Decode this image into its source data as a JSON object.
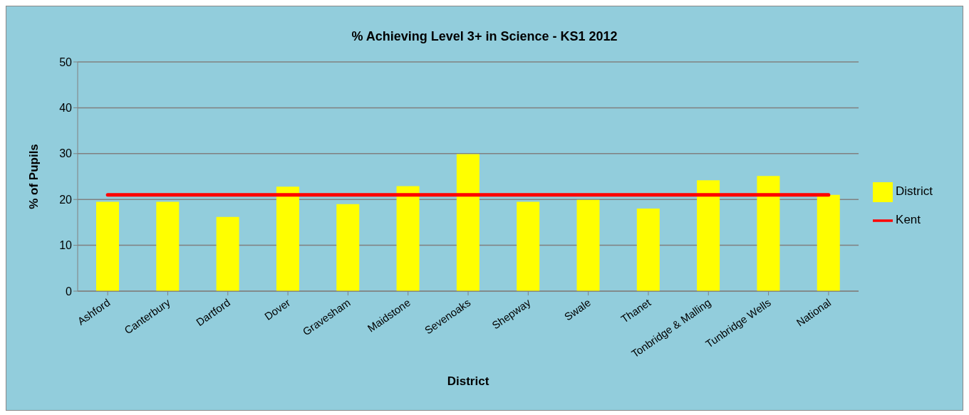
{
  "chart_data": {
    "type": "bar",
    "title": "% Achieving Level 3+ in Science - KS1 2012",
    "xlabel": "District",
    "ylabel": "% of Pupils",
    "categories": [
      "Ashford",
      "Canterbury",
      "Dartford",
      "Dover",
      "Gravesham",
      "Maidstone",
      "Sevenoaks",
      "Shepway",
      "Swale",
      "Thanet",
      "Tonbridge & Malling",
      "Tunbridge Wells",
      "National"
    ],
    "series": [
      {
        "name": "District",
        "color": "#ffff00",
        "values": [
          19.5,
          19.5,
          16.2,
          22.8,
          19.0,
          22.9,
          29.9,
          19.5,
          19.9,
          18.0,
          24.2,
          25.1,
          21.0
        ]
      },
      {
        "name": "Kent",
        "type": "line",
        "color": "#ff0000",
        "values": [
          21.0,
          21.0,
          21.0,
          21.0,
          21.0,
          21.0,
          21.0,
          21.0,
          21.0,
          21.0,
          21.0,
          21.0,
          21.0
        ]
      }
    ],
    "ylim": [
      0,
      50
    ],
    "yticks": [
      0,
      10,
      20,
      30,
      40,
      50
    ],
    "grid": "y",
    "legend": "right",
    "marker": "none"
  }
}
